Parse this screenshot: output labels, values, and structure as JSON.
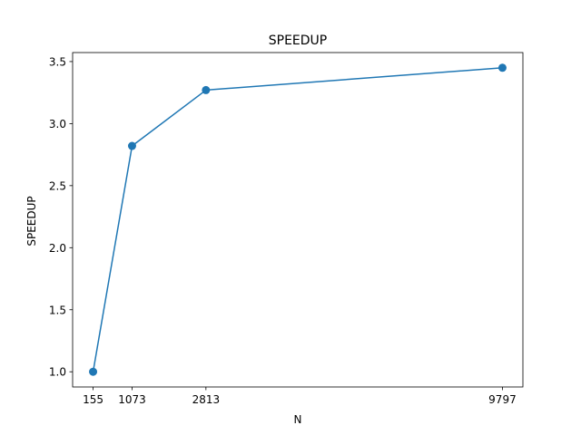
{
  "chart_data": {
    "type": "line",
    "title": "SPEEDUP",
    "xlabel": "N",
    "ylabel": "SPEEDUP",
    "x": [
      155,
      1073,
      2813,
      9797
    ],
    "series": [
      {
        "values": [
          1.0,
          2.82,
          3.27,
          3.45
        ],
        "color": "#1f77b4"
      }
    ],
    "xticks": [
      155,
      1073,
      2813,
      9797
    ],
    "yticks": [
      1.0,
      1.5,
      2.0,
      2.5,
      3.0,
      3.5
    ],
    "ytick_labels": [
      "1.0",
      "1.5",
      "2.0",
      "2.5",
      "3.0",
      "3.5"
    ],
    "xlim": [
      -327.1,
      10279.1
    ],
    "ylim": [
      0.8775,
      3.5725
    ],
    "grid": false,
    "legend": "none"
  }
}
